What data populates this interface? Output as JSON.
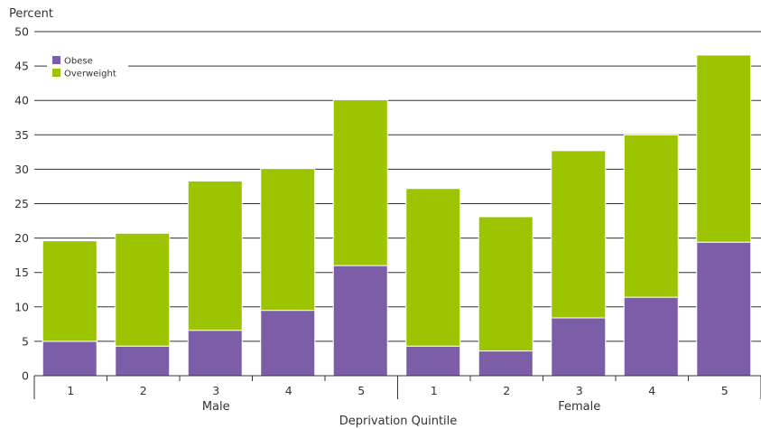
{
  "chart_data": {
    "type": "bar",
    "stacked": true,
    "ylabel": "Percent",
    "xlabel": "Deprivation Quintile",
    "ylim": [
      0,
      50
    ],
    "yticks": [
      0,
      5,
      10,
      15,
      20,
      25,
      30,
      35,
      40,
      45,
      50
    ],
    "grid": true,
    "legend": {
      "position": "top-left"
    },
    "groups": [
      {
        "name": "Male",
        "categories": [
          "1",
          "2",
          "3",
          "4",
          "5"
        ]
      },
      {
        "name": "Female",
        "categories": [
          "1",
          "2",
          "3",
          "4",
          "5"
        ]
      }
    ],
    "series": [
      {
        "name": "Obese",
        "color": "#7b5ea7",
        "values": [
          5.0,
          4.3,
          6.6,
          9.5,
          16.0,
          4.3,
          3.6,
          8.4,
          11.4,
          19.4
        ]
      },
      {
        "name": "Overweight",
        "color": "#9dc400",
        "values": [
          14.6,
          16.4,
          21.7,
          20.6,
          24.1,
          22.9,
          19.5,
          24.3,
          23.6,
          27.2
        ]
      }
    ]
  }
}
